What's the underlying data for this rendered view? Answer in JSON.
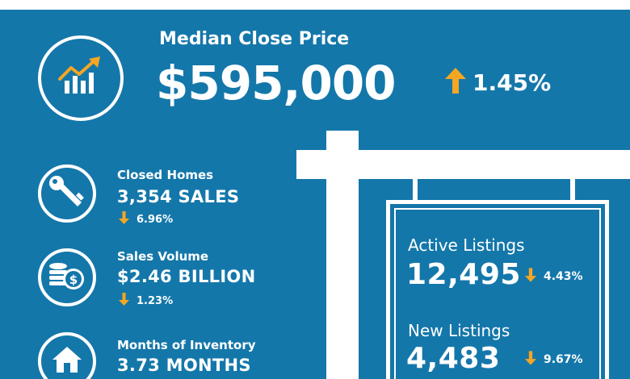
{
  "hero": {
    "label": "Median Close Price",
    "value": "$595,000",
    "change": "1.45%",
    "direction": "up",
    "icon": "rising-chart-icon"
  },
  "stats": [
    {
      "label": "Closed Homes",
      "value": "3,354 SALES",
      "change": "6.96%",
      "direction": "down",
      "icon": "key-icon"
    },
    {
      "label": "Sales Volume",
      "value": "$2.46 BILLION",
      "change": "1.23%",
      "direction": "down",
      "icon": "coins-icon"
    },
    {
      "label": "Months of Inventory",
      "value": "3.73 MONTHS",
      "icon": "house-icon"
    }
  ],
  "sign": {
    "active": {
      "label": "Active Listings",
      "value": "12,495",
      "change": "4.43%",
      "direction": "down"
    },
    "new": {
      "label": "New Listings",
      "value": "4,483",
      "change": "9.67%",
      "direction": "down"
    }
  },
  "colors": {
    "background": "#1477aa",
    "foreground": "#ffffff",
    "accent": "#f5a623"
  }
}
